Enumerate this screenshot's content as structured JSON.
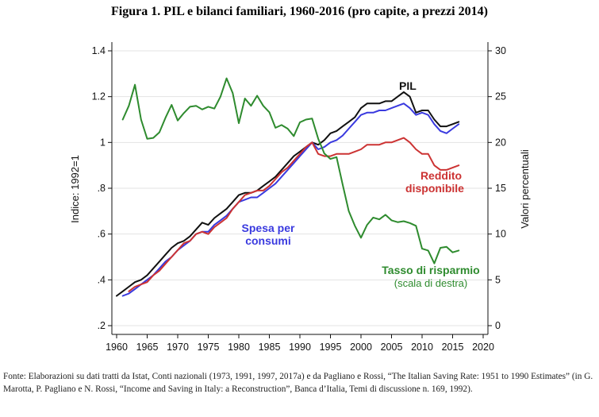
{
  "title": "Figura 1. PIL e bilanci familiari, 1960-2016 (pro capite, a prezzi 2014)",
  "source_note": "Fonte: Elaborazioni su dati tratti da Istat, Conti nazionali (1973, 1991, 1997, 2017a) e da Pagliano e Rossi, “The Italian Saving Rate: 1951 to 1990 Estimates” (in G. Marotta, P. Pagliano e N. Rossi, “Income and Saving in Italy: a Reconstruction”, Banca d’Italia, Temi di discussione n. 169, 1992).",
  "chart_data": {
    "type": "line",
    "title": "Figura 1. PIL e bilanci familiari, 1960-2016 (pro capite, a prezzi 2014)",
    "xlabel": "",
    "ylabel_left": "Indice: 1992=1",
    "ylabel_right": "Valori percentuali",
    "xlim": [
      1960,
      2020
    ],
    "ylim_left": [
      0.2,
      1.4
    ],
    "ylim_right": [
      0,
      30
    ],
    "xticks": [
      "1960",
      "1965",
      "1970",
      "1975",
      "1980",
      "1985",
      "1990",
      "1995",
      "2000",
      "2005",
      "2010",
      "2015",
      "2020"
    ],
    "yticks_left": [
      ".2",
      ".4",
      ".6",
      ".8",
      "1",
      "1.2",
      "1.4"
    ],
    "yticks_right": [
      "0",
      "5",
      "10",
      "15",
      "20",
      "25",
      "30"
    ],
    "grid": true,
    "series": [
      {
        "name": "PIL",
        "axis": "left",
        "color": "#111111",
        "x": [
          1960,
          1961,
          1962,
          1963,
          1964,
          1965,
          1966,
          1967,
          1968,
          1969,
          1970,
          1971,
          1972,
          1973,
          1974,
          1975,
          1976,
          1977,
          1978,
          1979,
          1980,
          1981,
          1982,
          1983,
          1984,
          1985,
          1986,
          1987,
          1988,
          1989,
          1990,
          1991,
          1992,
          1993,
          1994,
          1995,
          1996,
          1997,
          1998,
          1999,
          2000,
          2001,
          2002,
          2003,
          2004,
          2005,
          2006,
          2007,
          2008,
          2009,
          2010,
          2011,
          2012,
          2013,
          2014,
          2015,
          2016
        ],
        "y": [
          0.33,
          0.35,
          0.37,
          0.39,
          0.4,
          0.42,
          0.45,
          0.48,
          0.51,
          0.54,
          0.56,
          0.57,
          0.59,
          0.62,
          0.65,
          0.64,
          0.67,
          0.69,
          0.71,
          0.74,
          0.77,
          0.78,
          0.78,
          0.79,
          0.81,
          0.83,
          0.85,
          0.88,
          0.91,
          0.94,
          0.96,
          0.98,
          1.0,
          0.99,
          1.01,
          1.04,
          1.05,
          1.07,
          1.09,
          1.11,
          1.15,
          1.17,
          1.17,
          1.17,
          1.18,
          1.18,
          1.2,
          1.22,
          1.2,
          1.13,
          1.14,
          1.14,
          1.1,
          1.07,
          1.07,
          1.08,
          1.09
        ]
      },
      {
        "name": "Spesa per consumi",
        "axis": "left",
        "color": "#3a3adf",
        "x": [
          1961,
          1962,
          1963,
          1964,
          1965,
          1966,
          1967,
          1968,
          1969,
          1970,
          1971,
          1972,
          1973,
          1974,
          1975,
          1976,
          1977,
          1978,
          1979,
          1980,
          1981,
          1982,
          1983,
          1984,
          1985,
          1986,
          1987,
          1988,
          1989,
          1990,
          1991,
          1992,
          1993,
          1994,
          1995,
          1996,
          1997,
          1998,
          1999,
          2000,
          2001,
          2002,
          2003,
          2004,
          2005,
          2006,
          2007,
          2008,
          2009,
          2010,
          2011,
          2012,
          2013,
          2014,
          2015,
          2016
        ],
        "y": [
          0.33,
          0.34,
          0.36,
          0.38,
          0.4,
          0.42,
          0.45,
          0.48,
          0.5,
          0.53,
          0.55,
          0.57,
          0.6,
          0.61,
          0.61,
          0.64,
          0.66,
          0.68,
          0.71,
          0.74,
          0.75,
          0.76,
          0.76,
          0.78,
          0.8,
          0.82,
          0.85,
          0.88,
          0.91,
          0.94,
          0.97,
          1.0,
          0.97,
          0.98,
          1.0,
          1.01,
          1.03,
          1.06,
          1.09,
          1.12,
          1.13,
          1.13,
          1.14,
          1.14,
          1.15,
          1.16,
          1.17,
          1.15,
          1.12,
          1.13,
          1.12,
          1.08,
          1.05,
          1.04,
          1.06,
          1.08
        ]
      },
      {
        "name": "Reddito disponibile",
        "axis": "left",
        "color": "#cc3333",
        "x": [
          1962,
          1963,
          1964,
          1965,
          1966,
          1967,
          1968,
          1969,
          1970,
          1971,
          1972,
          1973,
          1974,
          1975,
          1976,
          1977,
          1978,
          1979,
          1980,
          1981,
          1982,
          1983,
          1984,
          1985,
          1986,
          1987,
          1988,
          1989,
          1990,
          1991,
          1992,
          1993,
          1994,
          1995,
          1996,
          1997,
          1998,
          1999,
          2000,
          2001,
          2002,
          2003,
          2004,
          2005,
          2006,
          2007,
          2008,
          2009,
          2010,
          2011,
          2012,
          2013,
          2014,
          2015,
          2016
        ],
        "y": [
          0.35,
          0.37,
          0.38,
          0.39,
          0.42,
          0.44,
          0.47,
          0.5,
          0.53,
          0.56,
          0.57,
          0.6,
          0.61,
          0.6,
          0.63,
          0.65,
          0.67,
          0.71,
          0.74,
          0.77,
          0.78,
          0.79,
          0.79,
          0.81,
          0.84,
          0.87,
          0.89,
          0.92,
          0.95,
          0.98,
          1.0,
          0.95,
          0.94,
          0.94,
          0.95,
          0.95,
          0.95,
          0.96,
          0.97,
          0.99,
          0.99,
          0.99,
          1.0,
          1.0,
          1.01,
          1.02,
          1.0,
          0.97,
          0.95,
          0.95,
          0.9,
          0.88,
          0.88,
          0.89,
          0.9
        ]
      },
      {
        "name": "Tasso di risparmio",
        "axis": "right",
        "color": "#2e8b2e",
        "x": [
          1961,
          1962,
          1963,
          1964,
          1965,
          1966,
          1967,
          1968,
          1969,
          1970,
          1971,
          1972,
          1973,
          1974,
          1975,
          1976,
          1977,
          1978,
          1979,
          1980,
          1981,
          1982,
          1983,
          1984,
          1985,
          1986,
          1987,
          1988,
          1989,
          1990,
          1991,
          1992,
          1993,
          1994,
          1995,
          1996,
          1997,
          1998,
          1999,
          2000,
          2001,
          2002,
          2003,
          2004,
          2005,
          2006,
          2007,
          2008,
          2009,
          2010,
          2011,
          2012,
          2013,
          2014,
          2015,
          2016
        ],
        "y": [
          22.5,
          24,
          26.3,
          22.5,
          20.4,
          20.5,
          21.1,
          22.7,
          24.1,
          22.4,
          23.2,
          23.9,
          24,
          23.6,
          23.9,
          23.7,
          25,
          27,
          25.4,
          22.1,
          24.8,
          24,
          25.1,
          24,
          23.3,
          21.6,
          21.9,
          21.5,
          20.7,
          22.2,
          22.5,
          22.6,
          20.4,
          18.8,
          18.2,
          18.4,
          15.4,
          12.5,
          10.9,
          9.6,
          11,
          11.8,
          11.6,
          12.1,
          11.5,
          11.3,
          11.4,
          11.2,
          10.9,
          8.4,
          8.2,
          6.8,
          8.5,
          8.6,
          8,
          8.2
        ]
      }
    ],
    "annotations": {
      "pil": "PIL",
      "reddito_line1": "Reddito",
      "reddito_line2": "disponibile",
      "spesa_line1": "Spesa per",
      "spesa_line2": "consumi",
      "tasso_line1": "Tasso di risparmio",
      "tasso_line2": "(scala di destra)"
    }
  }
}
